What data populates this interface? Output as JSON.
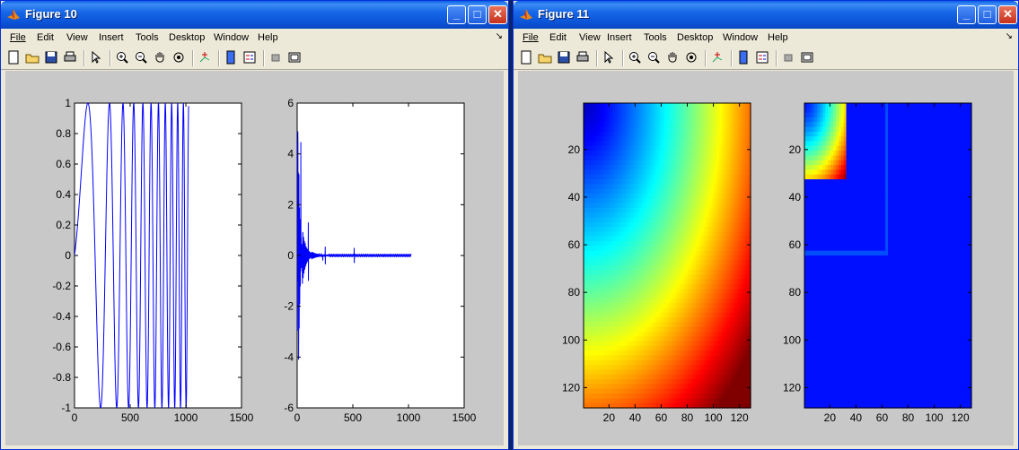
{
  "windows": [
    {
      "title": "Figure 10",
      "menu": [
        "File",
        "Edit",
        "View",
        "Insert",
        "Tools",
        "Desktop",
        "Window",
        "Help"
      ],
      "controls": {
        "minimize": "_",
        "maximize": "□",
        "close": "✕"
      },
      "axes": [
        {
          "type": "line",
          "xlim": [
            0,
            1500
          ],
          "ylim": [
            -1,
            1
          ],
          "xticks": [
            "0",
            "500",
            "1000",
            "1500"
          ],
          "yticks": [
            "-1",
            "-0.8",
            "-0.6",
            "-0.4",
            "-0.2",
            "0",
            "0.2",
            "0.4",
            "0.6",
            "0.8",
            "1"
          ],
          "series": [
            {
              "kind": "chirp",
              "x": [
                0,
                1025
              ],
              "color": "#0000ff"
            }
          ]
        },
        {
          "type": "line",
          "xlim": [
            0,
            1500
          ],
          "ylim": [
            -6,
            6
          ],
          "xticks": [
            "0",
            "500",
            "1000",
            "1500"
          ],
          "yticks": [
            "-6",
            "-4",
            "-2",
            "0",
            "2",
            "4",
            "6"
          ],
          "series": [
            {
              "kind": "transient",
              "x": [
                0,
                1025
              ],
              "color": "#0000ff"
            }
          ]
        }
      ]
    },
    {
      "title": "Figure 11",
      "menu": [
        "File",
        "Edit",
        "View",
        "Insert",
        "Tools",
        "Desktop",
        "Window",
        "Help"
      ],
      "controls": {
        "minimize": "_",
        "maximize": "□",
        "close": "✕"
      },
      "axes": [
        {
          "type": "heatmap",
          "xlim": [
            0.5,
            128.5
          ],
          "ylim": [
            0.5,
            128.5
          ],
          "xticks": [
            "20",
            "40",
            "60",
            "80",
            "100",
            "120"
          ],
          "yticks": [
            "20",
            "40",
            "60",
            "80",
            "100",
            "120"
          ],
          "colormap": "jet",
          "pattern": "radial-gradient-bottom-right"
        },
        {
          "type": "heatmap",
          "xlim": [
            0.5,
            128.5
          ],
          "ylim": [
            0.5,
            128.5
          ],
          "xticks": [
            "20",
            "40",
            "60",
            "80",
            "100",
            "120"
          ],
          "yticks": [
            "20",
            "40",
            "60",
            "80",
            "100",
            "120"
          ],
          "colormap": "jet",
          "pattern": "nested-blocks"
        }
      ]
    }
  ],
  "chart_data": [
    {
      "type": "line",
      "xlim": [
        0,
        1500
      ],
      "ylim": [
        -1,
        1
      ],
      "series": [
        {
          "values": "chirp signal, x from 0 to ~1025, amplitude 1, frequency increasing"
        }
      ]
    },
    {
      "type": "line",
      "xlim": [
        0,
        1500
      ],
      "ylim": [
        -6,
        6
      ],
      "series": [
        {
          "values": "impulse/transient response, spikes up to ~5.8 near x=0, decaying, small bursts at ~250 and ~512"
        }
      ]
    },
    {
      "type": "heatmap",
      "xlim": [
        0.5,
        128.5
      ],
      "ylim": [
        0.5,
        128.5
      ],
      "colormap": "jet"
    },
    {
      "type": "heatmap",
      "xlim": [
        0.5,
        128.5
      ],
      "ylim": [
        0.5,
        128.5
      ],
      "colormap": "jet"
    }
  ]
}
